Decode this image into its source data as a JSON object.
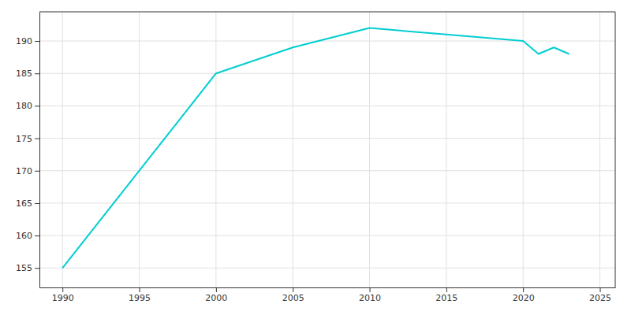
{
  "chart_data": {
    "type": "line",
    "x": [
      1990,
      2000,
      2005,
      2010,
      2015,
      2020,
      2021,
      2022,
      2023
    ],
    "values": [
      155,
      185,
      189,
      192,
      191,
      190,
      188,
      189,
      188
    ],
    "color": "#00CED1",
    "xlim": [
      1988.5,
      2026
    ],
    "ylim": [
      152,
      194.5
    ],
    "xticks": [
      1990,
      1995,
      2000,
      2005,
      2010,
      2015,
      2020,
      2025
    ],
    "yticks": [
      155,
      160,
      165,
      170,
      175,
      180,
      185,
      190
    ],
    "grid": true
  }
}
